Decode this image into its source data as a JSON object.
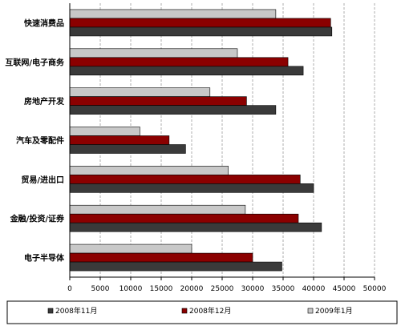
{
  "chart_data": {
    "type": "bar",
    "orientation": "horizontal",
    "categories": [
      "快速消费品",
      "互联网/电子商务",
      "房地产开发",
      "汽车及零配件",
      "贸易/进出口",
      "金融/投资/证券",
      "电子半导体"
    ],
    "series": [
      {
        "name": "2009年1月",
        "color": "#c8c8c8",
        "values": [
          33800,
          27500,
          23000,
          11500,
          26000,
          28800,
          20000
        ]
      },
      {
        "name": "2008年12月",
        "color": "#8b0000",
        "values": [
          42800,
          35800,
          29000,
          16300,
          37800,
          37500,
          30000
        ]
      },
      {
        "name": "2008年11月",
        "color": "#3a3a3a",
        "values": [
          43000,
          38300,
          33800,
          19000,
          40000,
          41300,
          34800
        ]
      }
    ],
    "xlim": [
      0,
      50000
    ],
    "x_ticks": [
      "0",
      "5000",
      "10000",
      "15000",
      "20000",
      "25000",
      "30000",
      "35000",
      "40000",
      "45000",
      "50000"
    ],
    "grid": "vertical-dashed",
    "legend_placement": "bottom",
    "legend": [
      "2008年11月",
      "2008年12月",
      "2009年1月"
    ]
  }
}
